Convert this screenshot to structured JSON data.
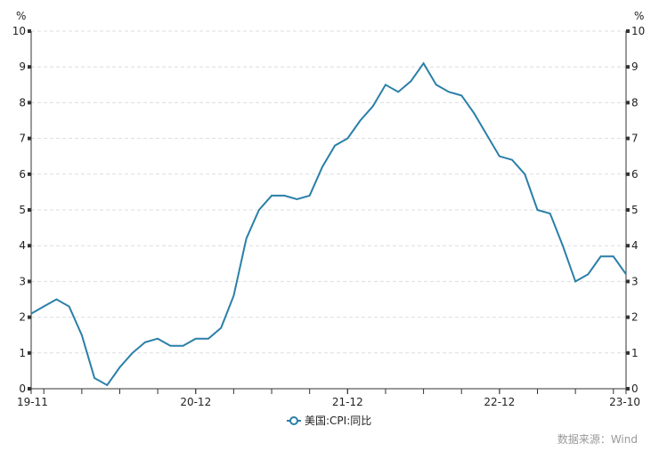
{
  "chart_data": {
    "type": "line",
    "title": "",
    "ylabel_left": "%",
    "ylabel_right": "%",
    "ylim": [
      0,
      10
    ],
    "yticks": [
      0,
      1,
      2,
      3,
      4,
      5,
      6,
      7,
      8,
      9,
      10
    ],
    "grid": true,
    "legend_placement": "bottom",
    "x_tick_labels": [
      "19-11",
      "20-12",
      "21-12",
      "22-12",
      "23-10"
    ],
    "x": [
      "19-11",
      "19-12",
      "20-01",
      "20-02",
      "20-03",
      "20-04",
      "20-05",
      "20-06",
      "20-07",
      "20-08",
      "20-09",
      "20-10",
      "20-11",
      "20-12",
      "21-01",
      "21-02",
      "21-03",
      "21-04",
      "21-05",
      "21-06",
      "21-07",
      "21-08",
      "21-09",
      "21-10",
      "21-11",
      "21-12",
      "22-01",
      "22-02",
      "22-03",
      "22-04",
      "22-05",
      "22-06",
      "22-07",
      "22-08",
      "22-09",
      "22-10",
      "22-11",
      "22-12",
      "23-01",
      "23-02",
      "23-03",
      "23-04",
      "23-05",
      "23-06",
      "23-07",
      "23-08",
      "23-09",
      "23-10"
    ],
    "series": [
      {
        "name": "美国:CPI:同比",
        "color": "#2a7fa8",
        "values": [
          2.1,
          2.3,
          2.5,
          2.3,
          1.5,
          0.3,
          0.1,
          0.6,
          1.0,
          1.3,
          1.4,
          1.2,
          1.2,
          1.4,
          1.4,
          1.7,
          2.6,
          4.2,
          5.0,
          5.4,
          5.4,
          5.3,
          5.4,
          6.2,
          6.8,
          7.0,
          7.5,
          7.9,
          8.5,
          8.3,
          8.6,
          9.1,
          8.5,
          8.3,
          8.2,
          7.7,
          7.1,
          6.5,
          6.4,
          6.0,
          5.0,
          4.9,
          4.0,
          3.0,
          3.2,
          3.7,
          3.7,
          3.2
        ]
      }
    ]
  },
  "source": "数据来源：Wind"
}
